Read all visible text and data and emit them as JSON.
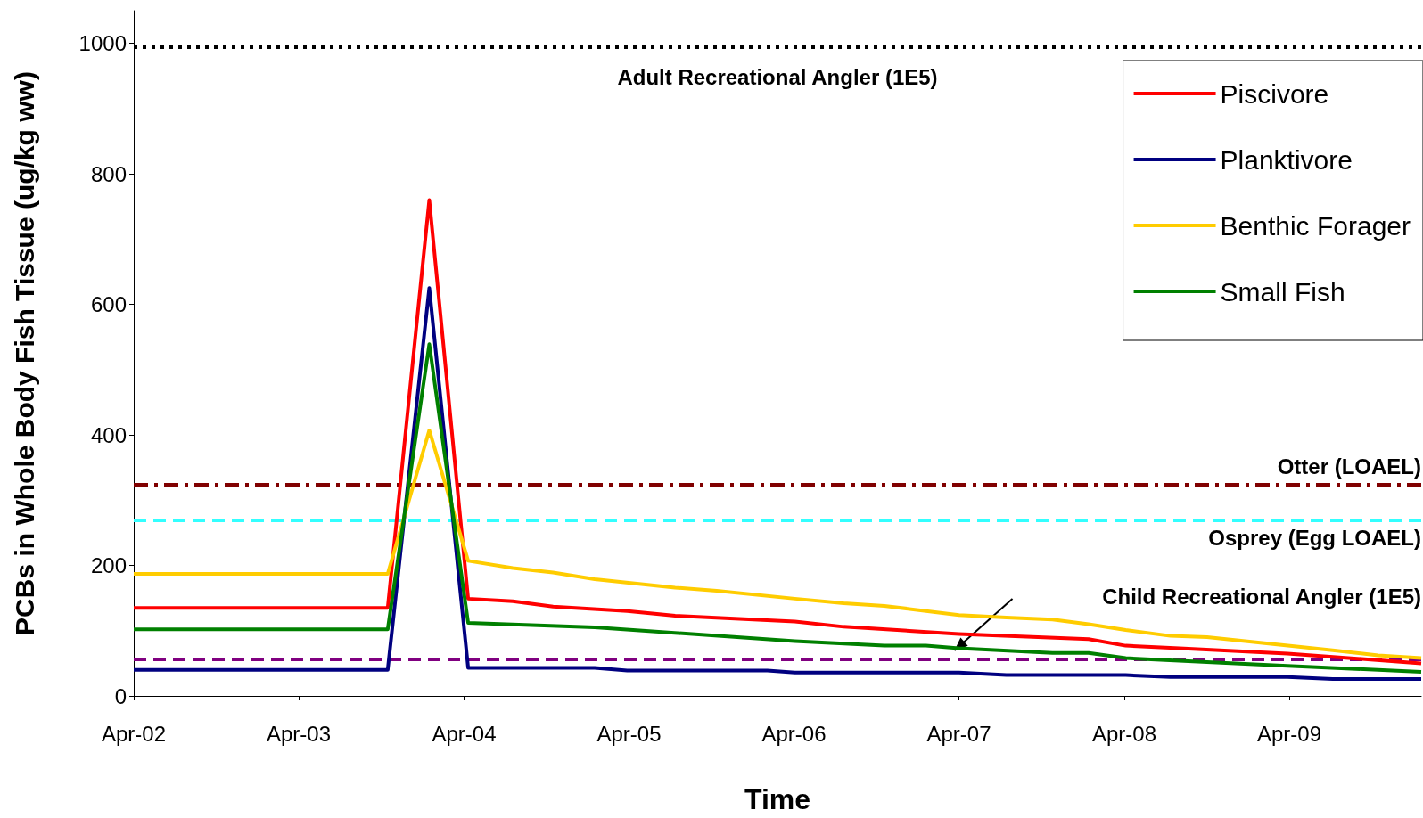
{
  "chart_data": {
    "type": "line",
    "xlabel": "Time",
    "ylabel": "PCBs in Whole Body Fish Tissue (ug/kg ww)",
    "xlim": [
      "2002-04-01",
      "2010-01-18"
    ],
    "xticks": [
      {
        "value": "2002-04-01",
        "label": "Apr-02"
      },
      {
        "value": "2003-04-01",
        "label": "Apr-03"
      },
      {
        "value": "2004-04-01",
        "label": "Apr-04"
      },
      {
        "value": "2005-04-01",
        "label": "Apr-05"
      },
      {
        "value": "2006-04-01",
        "label": "Apr-06"
      },
      {
        "value": "2007-04-01",
        "label": "Apr-07"
      },
      {
        "value": "2008-04-01",
        "label": "Apr-08"
      },
      {
        "value": "2009-04-01",
        "label": "Apr-09"
      }
    ],
    "ylim": [
      0,
      1050
    ],
    "yticks": [
      0,
      200,
      400,
      600,
      800,
      1000
    ],
    "grid": false,
    "legend": "top right",
    "marker": "none",
    "line_style": "solid",
    "series": [
      {
        "name": "Piscivore",
        "color": "#ff0000",
        "x": [
          "2002-04-01",
          "2003-10-15",
          "2004-01-15",
          "2004-04-10",
          "2004-07-18",
          "2004-10-15",
          "2005-03-28",
          "2005-07-12",
          "2006-04-03",
          "2006-07-20",
          "2007-04-01",
          "2008-01-13",
          "2008-04-04",
          "2008-08-01",
          "2009-03-28",
          "2010-01-18"
        ],
        "values": [
          135,
          135,
          760,
          149,
          145,
          137,
          130,
          123,
          114,
          106,
          95,
          87,
          77,
          73,
          65,
          50
        ]
      },
      {
        "name": "Planktivore",
        "color": "#000080",
        "x": [
          "2002-04-01",
          "2003-10-15",
          "2004-01-15",
          "2004-04-10",
          "2005-01-15",
          "2005-03-28",
          "2006-02-01",
          "2006-04-03",
          "2007-04-01",
          "2007-07-15",
          "2008-04-04",
          "2008-07-12",
          "2009-03-28",
          "2009-07-06",
          "2010-01-18"
        ],
        "values": [
          40,
          40,
          625,
          43,
          43,
          39,
          39,
          36,
          36,
          32,
          32,
          29,
          29,
          26,
          26
        ]
      },
      {
        "name": "Benthic Forager",
        "color": "#ffcc00",
        "x": [
          "2002-04-01",
          "2003-10-15",
          "2004-01-15",
          "2004-04-10",
          "2004-07-18",
          "2004-10-15",
          "2005-01-15",
          "2005-07-12",
          "2005-10-12",
          "2006-04-03",
          "2006-07-20",
          "2006-10-18",
          "2007-04-01",
          "2007-07-15",
          "2007-10-25",
          "2008-01-13",
          "2008-04-04",
          "2008-07-12",
          "2008-10-01",
          "2009-07-06",
          "2009-10-15",
          "2010-01-18"
        ],
        "values": [
          187,
          187,
          407,
          207,
          196,
          189,
          179,
          166,
          161,
          149,
          142,
          138,
          124,
          120,
          117,
          110,
          101,
          92,
          90,
          70,
          62,
          58
        ]
      },
      {
        "name": "Small Fish",
        "color": "#008000",
        "x": [
          "2002-04-01",
          "2003-10-15",
          "2004-01-15",
          "2004-04-10",
          "2005-01-15",
          "2006-04-03",
          "2006-10-18",
          "2007-01-18",
          "2007-04-01",
          "2007-10-25",
          "2008-01-13",
          "2008-04-04",
          "2008-10-01",
          "2009-03-28",
          "2010-01-18"
        ],
        "values": [
          102,
          102,
          539,
          112,
          105,
          84,
          77,
          77,
          73,
          66,
          66,
          58,
          52,
          46,
          37
        ]
      }
    ],
    "ref_lines": [
      {
        "axis": "y",
        "value": 995,
        "label": "Adult Recreational Angler (1E5)",
        "color": "#000000",
        "line_style": "dotted"
      },
      {
        "axis": "y",
        "value": 324,
        "label": "Otter (LOAEL)",
        "color": "#800000",
        "line_style": "dashdot"
      },
      {
        "axis": "y",
        "value": 270,
        "label": "Osprey (Egg LOAEL)",
        "color": "#33ffff",
        "line_style": "dashed"
      },
      {
        "axis": "y",
        "value": 56,
        "label": "Child Recreational Angler (1E5)",
        "color": "#800080",
        "line_style": "dashed"
      }
    ]
  }
}
